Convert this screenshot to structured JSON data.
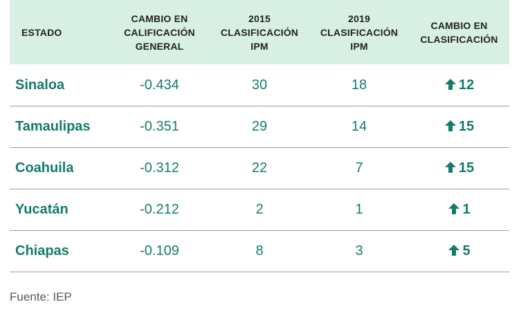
{
  "colors": {
    "header_bg": "#d8f0e3",
    "accent": "#147a6c",
    "divider": "#9a9a9a"
  },
  "headers": [
    "ESTADO",
    "CAMBIO EN CALIFICACIÓN GENERAL",
    "2015 CLASIFICACIÓN IPM",
    "2019 CLASIFICACIÓN IPM",
    "CAMBIO EN CLASIFICACIÓN"
  ],
  "rows": [
    {
      "state": "Sinaloa",
      "change_score": "-0.434",
      "rank_2015": "30",
      "rank_2019": "18",
      "rank_change": "12",
      "direction_icon": "arrow-up-icon"
    },
    {
      "state": "Tamaulipas",
      "change_score": "-0.351",
      "rank_2015": "29",
      "rank_2019": "14",
      "rank_change": "15",
      "direction_icon": "arrow-up-icon"
    },
    {
      "state": "Coahuila",
      "change_score": "-0.312",
      "rank_2015": "22",
      "rank_2019": "7",
      "rank_change": "15",
      "direction_icon": "arrow-up-icon"
    },
    {
      "state": "Yucatán",
      "change_score": "-0.212",
      "rank_2015": "2",
      "rank_2019": "1",
      "rank_change": "1",
      "direction_icon": "arrow-up-icon"
    },
    {
      "state": "Chiapas",
      "change_score": "-0.109",
      "rank_2015": "8",
      "rank_2019": "3",
      "rank_change": "5",
      "direction_icon": "arrow-up-icon"
    }
  ],
  "source": "Fuente: IEP"
}
